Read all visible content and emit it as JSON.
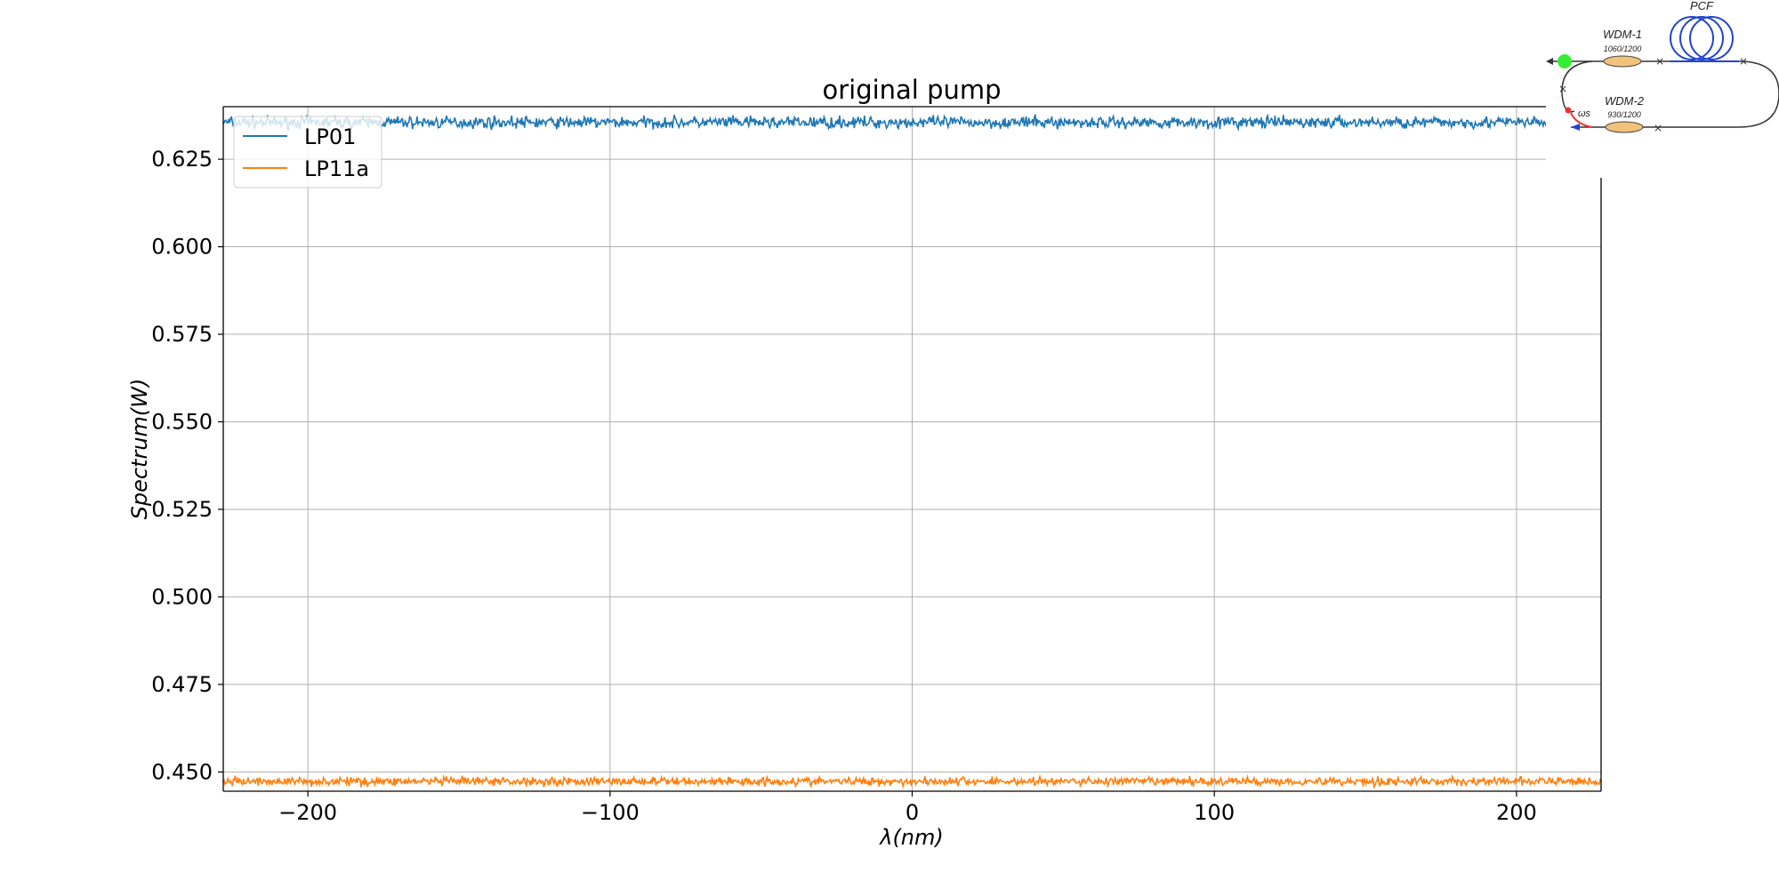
{
  "chart_data": {
    "type": "line",
    "title": "original pump",
    "xlabel": "λ(nm)",
    "ylabel": "Spectrum(W)",
    "xlim": [
      -228,
      228
    ],
    "ylim": [
      0.4445,
      0.64
    ],
    "xticks": [
      -200,
      -100,
      0,
      100,
      200
    ],
    "xtick_labels": [
      "−200",
      "−100",
      "0",
      "100",
      "200"
    ],
    "yticks": [
      0.45,
      0.475,
      0.5,
      0.525,
      0.55,
      0.575,
      0.6,
      0.625
    ],
    "ytick_labels": [
      "0.450",
      "0.475",
      "0.500",
      "0.525",
      "0.550",
      "0.575",
      "0.600",
      "0.625"
    ],
    "grid": true,
    "legend": "upper-left",
    "series": [
      {
        "name": "LP01",
        "color": "#1f77b4",
        "mean": 0.6355,
        "noise_amplitude": 0.0025,
        "x_range": [
          -228,
          228
        ]
      },
      {
        "name": "LP11a",
        "color": "#ff7f0e",
        "mean": 0.4473,
        "noise_amplitude": 0.0018,
        "x_range": [
          -228,
          228
        ]
      }
    ]
  },
  "inset": {
    "labels": {
      "pcf": "PCF",
      "wdm1": "WDM-1",
      "wdm1_spec": "1060/1200",
      "wdm2": "WDM-2",
      "wdm2_spec": "930/1200",
      "omega": "ωs"
    }
  }
}
